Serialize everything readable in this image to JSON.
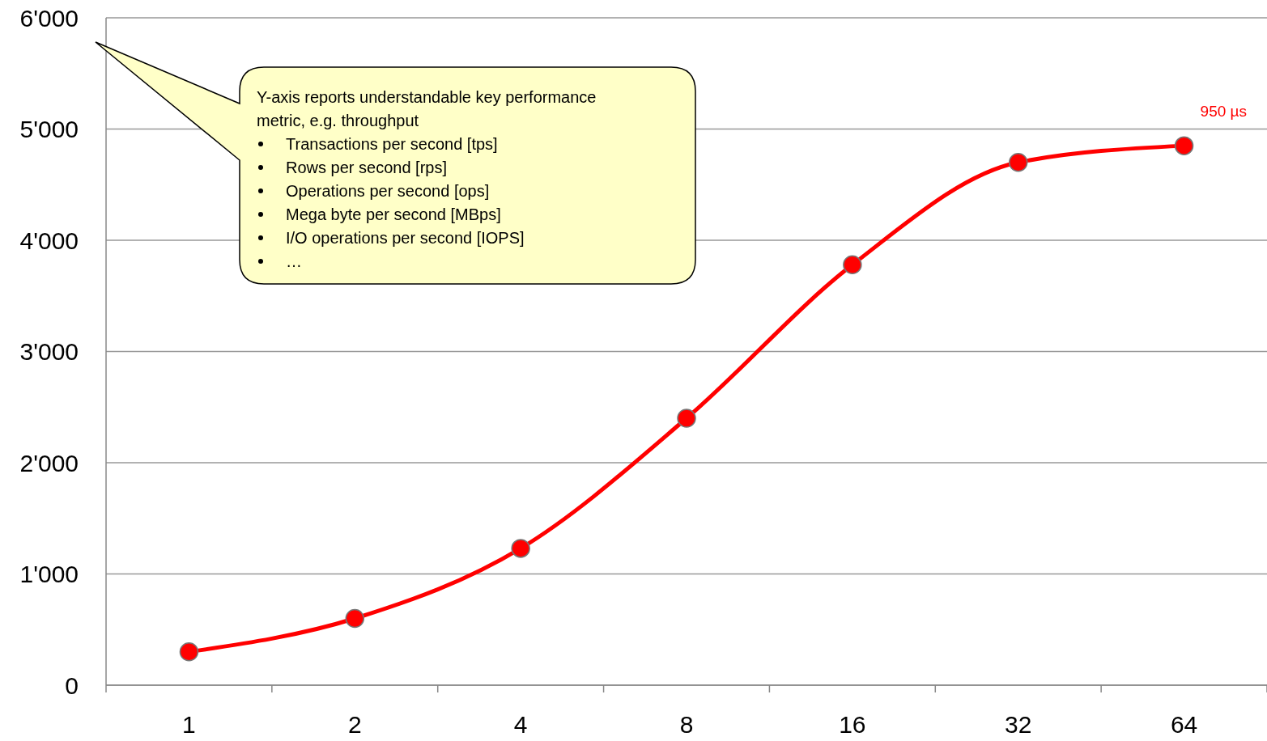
{
  "chart_data": {
    "type": "line",
    "categories": [
      "1",
      "2",
      "4",
      "8",
      "16",
      "32",
      "64"
    ],
    "series": [
      {
        "color": "#ff0000",
        "values": [
          300,
          600,
          1230,
          2400,
          3780,
          4700,
          4850
        ]
      }
    ],
    "ylim": [
      0,
      6000
    ],
    "yticks": [
      0,
      {
        "value": 1000,
        "label": "1'000"
      },
      {
        "value": 2000,
        "label": "2'000"
      },
      {
        "value": 3000,
        "label": "3'000"
      },
      {
        "value": 4000,
        "label": "4'000"
      },
      {
        "value": 5000,
        "label": "5'000"
      },
      {
        "value": 6000,
        "label": "6'000"
      }
    ],
    "grid": "y",
    "marker": "circle",
    "line_style": "solid",
    "annotations": [
      "Y-axis reports understandable key performance metric, e.g. throughput",
      "Transactions per second [tps]",
      "Rows per second [rps]",
      "Operations per second [ops]",
      "Mega byte per second [MBps]",
      "I/O operations per second [IOPS]",
      "…",
      {
        "text": "950 µs",
        "x": "64",
        "y": 4850
      }
    ]
  }
}
